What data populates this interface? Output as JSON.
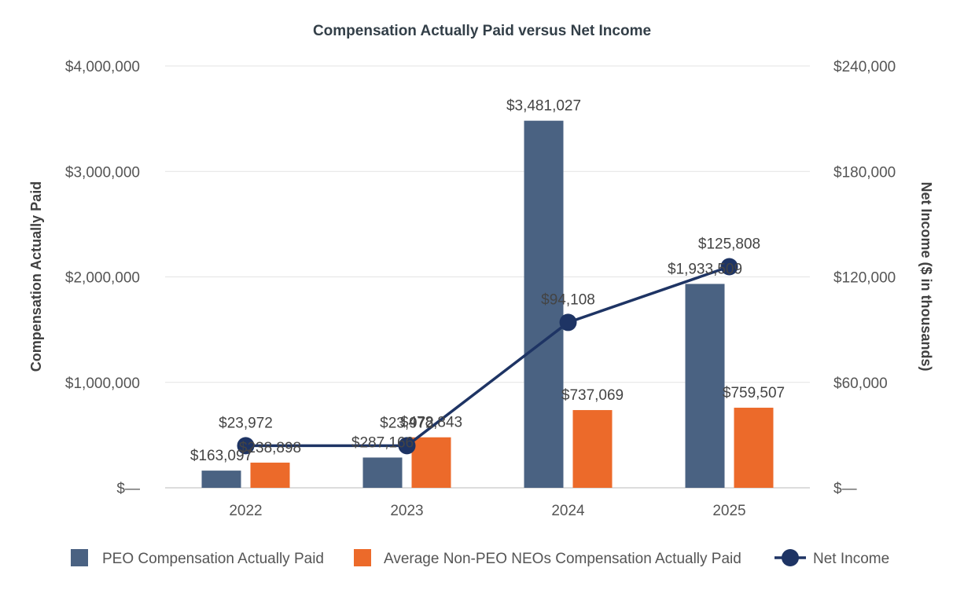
{
  "chart_data": {
    "type": "bar",
    "title": "Compensation Actually Paid versus Net Income",
    "categories": [
      "2022",
      "2023",
      "2024",
      "2025"
    ],
    "y_left": {
      "label": "Compensation Actually Paid",
      "min": 0,
      "max": 4000000,
      "ticks": [
        {
          "value": 0,
          "label": "$—"
        },
        {
          "value": 1000000,
          "label": "$1,000,000"
        },
        {
          "value": 2000000,
          "label": "$2,000,000"
        },
        {
          "value": 3000000,
          "label": "$3,000,000"
        },
        {
          "value": 4000000,
          "label": "$4,000,000"
        }
      ]
    },
    "y_right": {
      "label": "Net Income ($ in thousands)",
      "min": 0,
      "max": 240000,
      "ticks": [
        {
          "value": 0,
          "label": "$—"
        },
        {
          "value": 60000,
          "label": "$60,000"
        },
        {
          "value": 120000,
          "label": "$120,000"
        },
        {
          "value": 180000,
          "label": "$180,000"
        },
        {
          "value": 240000,
          "label": "$240,000"
        }
      ]
    },
    "grid": true,
    "legend_position": "bottom",
    "series": [
      {
        "name": "PEO Compensation Actually Paid",
        "type": "bar",
        "axis": "left",
        "color": "#4a6282",
        "values": [
          163097,
          287166,
          3481027,
          1933509
        ],
        "labels": [
          "$163,097",
          "$287,166",
          "$3,481,027",
          "$1,933,509"
        ]
      },
      {
        "name": "Average Non-PEO NEOs Compensation Actually Paid",
        "type": "bar",
        "axis": "left",
        "color": "#ec6a2a",
        "values": [
          238898,
          478843,
          737069,
          759507
        ],
        "labels": [
          "$238,898",
          "$478,843",
          "$737,069",
          "$759,507"
        ]
      },
      {
        "name": "Net Income",
        "type": "line",
        "axis": "right",
        "color": "#1e3464",
        "values": [
          23972,
          23972,
          94108,
          125808
        ],
        "labels": [
          "$23,972",
          "$23,972",
          "$94,108",
          "$125,808"
        ]
      }
    ]
  }
}
